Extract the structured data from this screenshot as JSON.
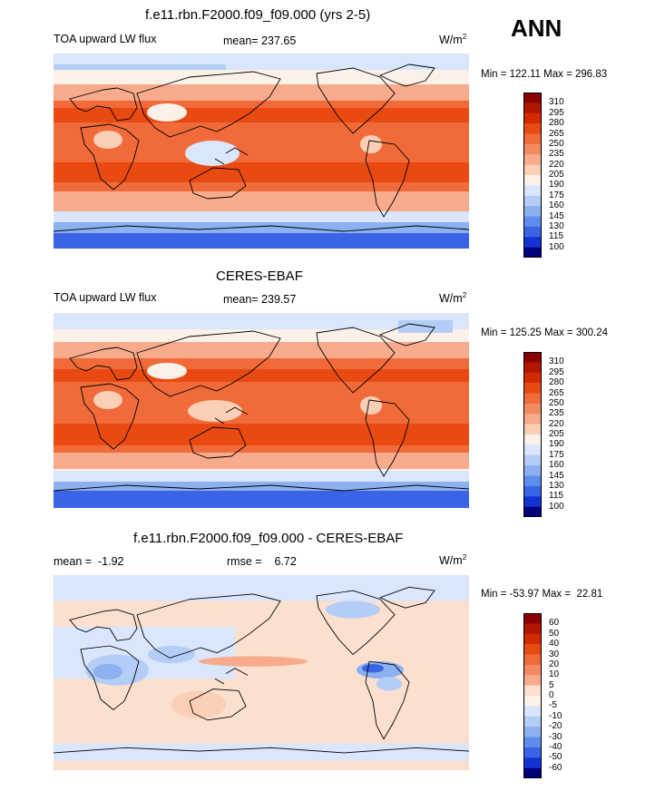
{
  "season": "ANN",
  "panels": [
    {
      "title": "f.e11.rbn.F2000.f09_f09.000 (yrs 2-5)",
      "left_label": "TOA upward LW flux",
      "mid_label": "mean= 237.65",
      "units_base": "W/m",
      "units_exp": "2",
      "minmax": "Min = 122.11 Max = 296.83",
      "levels": [
        "310",
        "295",
        "280",
        "265",
        "250",
        "235",
        "220",
        "205",
        "190",
        "175",
        "160",
        "145",
        "130",
        "115",
        "100"
      ],
      "colors": [
        "#8b0000",
        "#b01600",
        "#d42a00",
        "#e84a12",
        "#f06a3a",
        "#f48a62",
        "#f7ab8c",
        "#fbcfb6",
        "#fbf1e8",
        "#d9e6fb",
        "#b4cdf6",
        "#8cb0f0",
        "#5f8ded",
        "#3a63e6",
        "#1533d4",
        "#00007c"
      ]
    },
    {
      "title": "CERES-EBAF",
      "left_label": "TOA upward LW flux",
      "mid_label": "mean= 239.57",
      "units_base": "W/m",
      "units_exp": "2",
      "minmax": "Min = 125.25 Max = 300.24",
      "levels": [
        "310",
        "295",
        "280",
        "265",
        "250",
        "235",
        "220",
        "205",
        "190",
        "175",
        "160",
        "145",
        "130",
        "115",
        "100"
      ],
      "colors": [
        "#8b0000",
        "#b01600",
        "#d42a00",
        "#e84a12",
        "#f06a3a",
        "#f48a62",
        "#f7ab8c",
        "#fbcfb6",
        "#fbf1e8",
        "#d9e6fb",
        "#b4cdf6",
        "#8cb0f0",
        "#5f8ded",
        "#3a63e6",
        "#1533d4",
        "#00007c"
      ]
    },
    {
      "title": "f.e11.rbn.F2000.f09_f09.000 - CERES-EBAF",
      "left_label": "mean =  -1.92",
      "mid_label": "rmse =    6.72",
      "units_base": "W/m",
      "units_exp": "2",
      "minmax": "Min = -53.97 Max =  22.81",
      "levels": [
        "60",
        "50",
        "40",
        "30",
        "20",
        "10",
        "5",
        "0",
        "-5",
        "-10",
        "-20",
        "-30",
        "-40",
        "-50",
        "-60"
      ],
      "colors": [
        "#8b0000",
        "#b01600",
        "#d42a00",
        "#e84a12",
        "#f06a3a",
        "#f48a62",
        "#f7ab8c",
        "#fbdfcf",
        "#fdf1e8",
        "#d9e6fb",
        "#b4cdf6",
        "#8cb0f0",
        "#5f8ded",
        "#3a63e6",
        "#1533d4",
        "#00007c"
      ]
    }
  ]
}
